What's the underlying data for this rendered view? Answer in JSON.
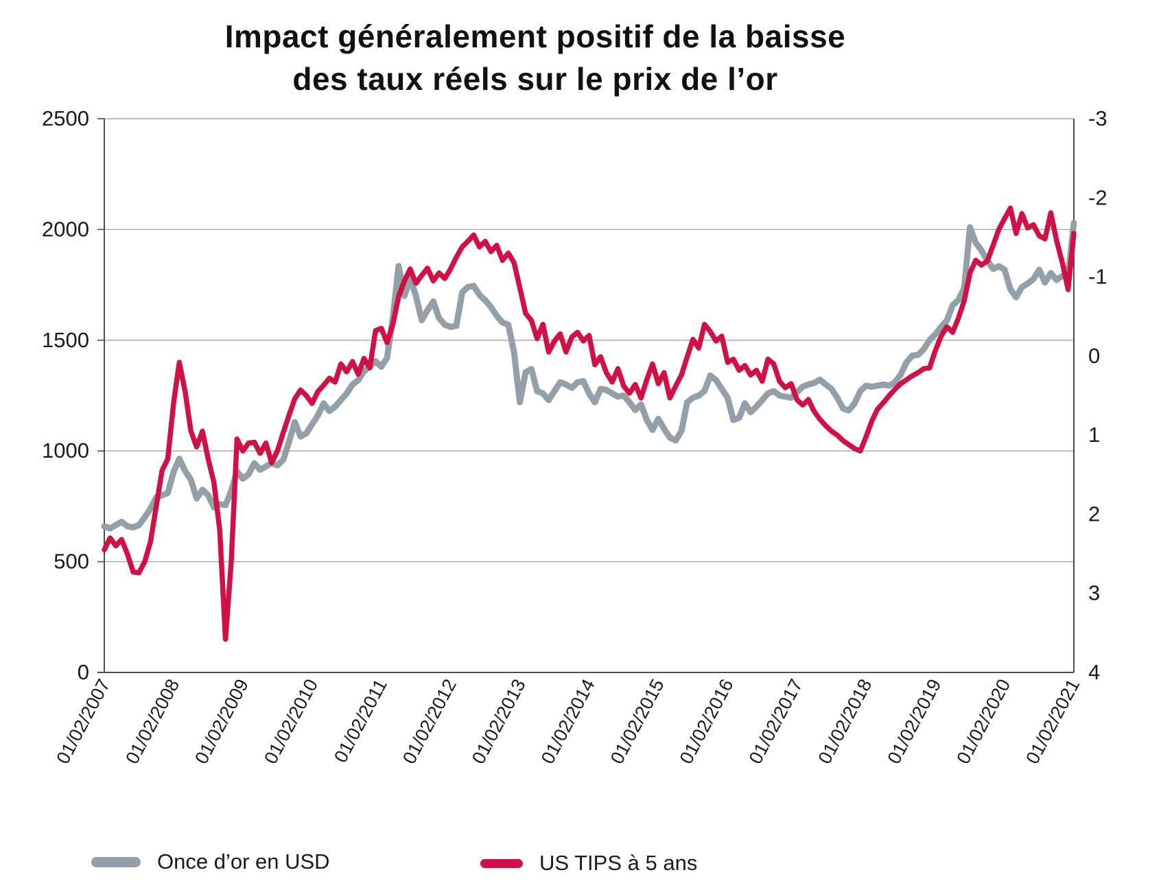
{
  "title": {
    "line1": "Impact généralement positif de la baisse",
    "line2": "des taux réels sur le prix de l’or"
  },
  "legend": {
    "gold_label": "Once d’or en USD",
    "tips_label": "US TIPS à 5 ans"
  },
  "colors": {
    "gold": "#93a0aa",
    "tips": "#cf1145",
    "gridline": "#a6a6a6",
    "axis": "#4d4d4d",
    "tick_text": "#1a1a1a"
  },
  "chart_data": {
    "type": "line",
    "title": "Impact généralement positif de la baisse des taux réels sur le prix de l’or",
    "x_tick_labels": [
      "01/02/2007",
      "01/02/2008",
      "01/02/2009",
      "01/02/2010",
      "01/02/2011",
      "01/02/2012",
      "01/02/2013",
      "01/02/2014",
      "01/02/2015",
      "01/02/2016",
      "01/02/2017",
      "01/02/2018",
      "01/02/2019",
      "01/02/2020",
      "01/02/2021"
    ],
    "x_points_per_tick": 12,
    "left_axis": {
      "label": "",
      "min": 0,
      "max": 2500,
      "ticks": [
        "0",
        "500",
        "1000",
        "1500",
        "2000",
        "2500"
      ]
    },
    "right_axis": {
      "label": "",
      "min": -3,
      "max": 4,
      "inverted": true,
      "ticks": [
        "-3",
        "-2",
        "-1",
        "0",
        "1",
        "2",
        "3",
        "4"
      ]
    },
    "grid": true,
    "legend_position": "bottom",
    "series": [
      {
        "name": "Once d’or en USD",
        "axis": "left",
        "color": "#93a0aa",
        "values": [
          660,
          650,
          665,
          680,
          660,
          655,
          665,
          700,
          740,
          790,
          800,
          810,
          905,
          965,
          910,
          870,
          785,
          825,
          800,
          745,
          760,
          755,
          820,
          908,
          875,
          895,
          945,
          915,
          930,
          945,
          935,
          960,
          1040,
          1130,
          1065,
          1080,
          1120,
          1160,
          1215,
          1180,
          1200,
          1230,
          1260,
          1300,
          1320,
          1360,
          1380,
          1405,
          1380,
          1420,
          1600,
          1835,
          1700,
          1780,
          1700,
          1590,
          1635,
          1675,
          1600,
          1570,
          1560,
          1565,
          1715,
          1740,
          1745,
          1705,
          1680,
          1650,
          1610,
          1580,
          1570,
          1445,
          1220,
          1355,
          1370,
          1270,
          1260,
          1230,
          1270,
          1310,
          1300,
          1285,
          1310,
          1315,
          1260,
          1220,
          1280,
          1275,
          1260,
          1245,
          1250,
          1220,
          1185,
          1210,
          1140,
          1095,
          1145,
          1100,
          1060,
          1047,
          1090,
          1220,
          1240,
          1250,
          1270,
          1340,
          1320,
          1280,
          1240,
          1140,
          1150,
          1215,
          1175,
          1200,
          1230,
          1260,
          1270,
          1250,
          1245,
          1240,
          1265,
          1290,
          1300,
          1307,
          1322,
          1300,
          1280,
          1240,
          1192,
          1183,
          1214,
          1270,
          1295,
          1290,
          1295,
          1300,
          1295,
          1310,
          1345,
          1400,
          1430,
          1434,
          1460,
          1500,
          1527,
          1560,
          1589,
          1658,
          1682,
          1735,
          2010,
          1940,
          1905,
          1860,
          1822,
          1834,
          1818,
          1730,
          1694,
          1740,
          1756,
          1776,
          1818,
          1760,
          1803,
          1772,
          1790,
          1791,
          2030
        ]
      },
      {
        "name": "US TIPS à 5 ans",
        "axis": "right",
        "color": "#cf1145",
        "values": [
          2.45,
          2.3,
          2.4,
          2.32,
          2.5,
          2.73,
          2.74,
          2.6,
          2.35,
          1.9,
          1.45,
          1.3,
          0.6,
          0.08,
          0.45,
          0.95,
          1.15,
          0.95,
          1.3,
          1.6,
          2.2,
          3.58,
          2.6,
          1.05,
          1.2,
          1.1,
          1.09,
          1.23,
          1.1,
          1.35,
          1.2,
          0.97,
          0.75,
          0.54,
          0.43,
          0.5,
          0.6,
          0.45,
          0.37,
          0.28,
          0.33,
          0.1,
          0.2,
          0.07,
          0.23,
          0.03,
          0.15,
          -0.32,
          -0.35,
          -0.17,
          -0.4,
          -0.75,
          -0.95,
          -1.1,
          -0.92,
          -1.02,
          -1.11,
          -0.95,
          -1.05,
          -0.98,
          -1.1,
          -1.25,
          -1.38,
          -1.45,
          -1.53,
          -1.38,
          -1.45,
          -1.32,
          -1.4,
          -1.21,
          -1.3,
          -1.18,
          -0.86,
          -0.54,
          -0.45,
          -0.22,
          -0.4,
          -0.05,
          -0.19,
          -0.28,
          -0.05,
          -0.24,
          -0.3,
          -0.19,
          -0.26,
          0.11,
          0.01,
          0.21,
          0.33,
          0.16,
          0.38,
          0.47,
          0.36,
          0.53,
          0.3,
          0.1,
          0.35,
          0.21,
          0.53,
          0.38,
          0.24,
          0.01,
          -0.21,
          -0.1,
          -0.4,
          -0.31,
          -0.19,
          -0.25,
          0.08,
          0.04,
          0.18,
          0.12,
          0.24,
          0.18,
          0.32,
          0.04,
          0.1,
          0.32,
          0.4,
          0.35,
          0.55,
          0.62,
          0.55,
          0.7,
          0.8,
          0.88,
          0.95,
          1.0,
          1.07,
          1.12,
          1.17,
          1.2,
          1.02,
          0.82,
          0.67,
          0.59,
          0.5,
          0.42,
          0.35,
          0.3,
          0.25,
          0.21,
          0.16,
          0.15,
          -0.07,
          -0.25,
          -0.37,
          -0.3,
          -0.48,
          -0.7,
          -1.05,
          -1.21,
          -1.15,
          -1.2,
          -1.4,
          -1.6,
          -1.74,
          -1.87,
          -1.55,
          -1.8,
          -1.62,
          -1.66,
          -1.52,
          -1.48,
          -1.81,
          -1.46,
          -1.18,
          -0.84,
          -1.55
        ]
      }
    ]
  }
}
